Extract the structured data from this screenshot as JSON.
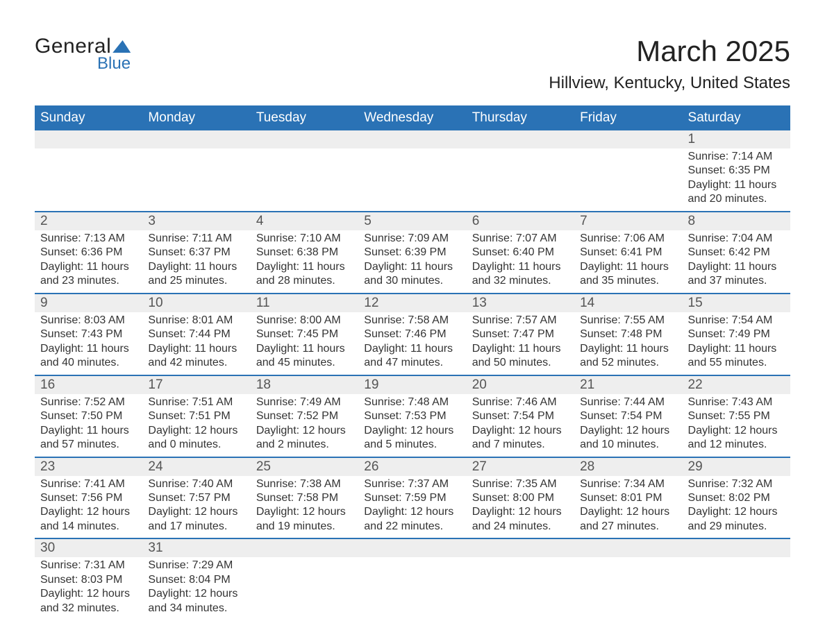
{
  "logo": {
    "text1": "General",
    "text2": "Blue"
  },
  "title": "March 2025",
  "location": "Hillview, Kentucky, United States",
  "colors": {
    "header_bg": "#2a72b5",
    "header_text": "#ffffff",
    "daynum_bg": "#eeeeee",
    "row_border": "#2a72b5",
    "body_text": "#333333",
    "page_bg": "#ffffff"
  },
  "fonts": {
    "title_pt": 42,
    "location_pt": 24,
    "header_pt": 19,
    "daynum_pt": 19,
    "cell_pt": 16
  },
  "dayHeaders": [
    "Sunday",
    "Monday",
    "Tuesday",
    "Wednesday",
    "Thursday",
    "Friday",
    "Saturday"
  ],
  "weeks": [
    [
      null,
      null,
      null,
      null,
      null,
      null,
      {
        "n": "1",
        "sr": "Sunrise: 7:14 AM",
        "ss": "Sunset: 6:35 PM",
        "d1": "Daylight: 11 hours",
        "d2": "and 20 minutes."
      }
    ],
    [
      {
        "n": "2",
        "sr": "Sunrise: 7:13 AM",
        "ss": "Sunset: 6:36 PM",
        "d1": "Daylight: 11 hours",
        "d2": "and 23 minutes."
      },
      {
        "n": "3",
        "sr": "Sunrise: 7:11 AM",
        "ss": "Sunset: 6:37 PM",
        "d1": "Daylight: 11 hours",
        "d2": "and 25 minutes."
      },
      {
        "n": "4",
        "sr": "Sunrise: 7:10 AM",
        "ss": "Sunset: 6:38 PM",
        "d1": "Daylight: 11 hours",
        "d2": "and 28 minutes."
      },
      {
        "n": "5",
        "sr": "Sunrise: 7:09 AM",
        "ss": "Sunset: 6:39 PM",
        "d1": "Daylight: 11 hours",
        "d2": "and 30 minutes."
      },
      {
        "n": "6",
        "sr": "Sunrise: 7:07 AM",
        "ss": "Sunset: 6:40 PM",
        "d1": "Daylight: 11 hours",
        "d2": "and 32 minutes."
      },
      {
        "n": "7",
        "sr": "Sunrise: 7:06 AM",
        "ss": "Sunset: 6:41 PM",
        "d1": "Daylight: 11 hours",
        "d2": "and 35 minutes."
      },
      {
        "n": "8",
        "sr": "Sunrise: 7:04 AM",
        "ss": "Sunset: 6:42 PM",
        "d1": "Daylight: 11 hours",
        "d2": "and 37 minutes."
      }
    ],
    [
      {
        "n": "9",
        "sr": "Sunrise: 8:03 AM",
        "ss": "Sunset: 7:43 PM",
        "d1": "Daylight: 11 hours",
        "d2": "and 40 minutes."
      },
      {
        "n": "10",
        "sr": "Sunrise: 8:01 AM",
        "ss": "Sunset: 7:44 PM",
        "d1": "Daylight: 11 hours",
        "d2": "and 42 minutes."
      },
      {
        "n": "11",
        "sr": "Sunrise: 8:00 AM",
        "ss": "Sunset: 7:45 PM",
        "d1": "Daylight: 11 hours",
        "d2": "and 45 minutes."
      },
      {
        "n": "12",
        "sr": "Sunrise: 7:58 AM",
        "ss": "Sunset: 7:46 PM",
        "d1": "Daylight: 11 hours",
        "d2": "and 47 minutes."
      },
      {
        "n": "13",
        "sr": "Sunrise: 7:57 AM",
        "ss": "Sunset: 7:47 PM",
        "d1": "Daylight: 11 hours",
        "d2": "and 50 minutes."
      },
      {
        "n": "14",
        "sr": "Sunrise: 7:55 AM",
        "ss": "Sunset: 7:48 PM",
        "d1": "Daylight: 11 hours",
        "d2": "and 52 minutes."
      },
      {
        "n": "15",
        "sr": "Sunrise: 7:54 AM",
        "ss": "Sunset: 7:49 PM",
        "d1": "Daylight: 11 hours",
        "d2": "and 55 minutes."
      }
    ],
    [
      {
        "n": "16",
        "sr": "Sunrise: 7:52 AM",
        "ss": "Sunset: 7:50 PM",
        "d1": "Daylight: 11 hours",
        "d2": "and 57 minutes."
      },
      {
        "n": "17",
        "sr": "Sunrise: 7:51 AM",
        "ss": "Sunset: 7:51 PM",
        "d1": "Daylight: 12 hours",
        "d2": "and 0 minutes."
      },
      {
        "n": "18",
        "sr": "Sunrise: 7:49 AM",
        "ss": "Sunset: 7:52 PM",
        "d1": "Daylight: 12 hours",
        "d2": "and 2 minutes."
      },
      {
        "n": "19",
        "sr": "Sunrise: 7:48 AM",
        "ss": "Sunset: 7:53 PM",
        "d1": "Daylight: 12 hours",
        "d2": "and 5 minutes."
      },
      {
        "n": "20",
        "sr": "Sunrise: 7:46 AM",
        "ss": "Sunset: 7:54 PM",
        "d1": "Daylight: 12 hours",
        "d2": "and 7 minutes."
      },
      {
        "n": "21",
        "sr": "Sunrise: 7:44 AM",
        "ss": "Sunset: 7:54 PM",
        "d1": "Daylight: 12 hours",
        "d2": "and 10 minutes."
      },
      {
        "n": "22",
        "sr": "Sunrise: 7:43 AM",
        "ss": "Sunset: 7:55 PM",
        "d1": "Daylight: 12 hours",
        "d2": "and 12 minutes."
      }
    ],
    [
      {
        "n": "23",
        "sr": "Sunrise: 7:41 AM",
        "ss": "Sunset: 7:56 PM",
        "d1": "Daylight: 12 hours",
        "d2": "and 14 minutes."
      },
      {
        "n": "24",
        "sr": "Sunrise: 7:40 AM",
        "ss": "Sunset: 7:57 PM",
        "d1": "Daylight: 12 hours",
        "d2": "and 17 minutes."
      },
      {
        "n": "25",
        "sr": "Sunrise: 7:38 AM",
        "ss": "Sunset: 7:58 PM",
        "d1": "Daylight: 12 hours",
        "d2": "and 19 minutes."
      },
      {
        "n": "26",
        "sr": "Sunrise: 7:37 AM",
        "ss": "Sunset: 7:59 PM",
        "d1": "Daylight: 12 hours",
        "d2": "and 22 minutes."
      },
      {
        "n": "27",
        "sr": "Sunrise: 7:35 AM",
        "ss": "Sunset: 8:00 PM",
        "d1": "Daylight: 12 hours",
        "d2": "and 24 minutes."
      },
      {
        "n": "28",
        "sr": "Sunrise: 7:34 AM",
        "ss": "Sunset: 8:01 PM",
        "d1": "Daylight: 12 hours",
        "d2": "and 27 minutes."
      },
      {
        "n": "29",
        "sr": "Sunrise: 7:32 AM",
        "ss": "Sunset: 8:02 PM",
        "d1": "Daylight: 12 hours",
        "d2": "and 29 minutes."
      }
    ],
    [
      {
        "n": "30",
        "sr": "Sunrise: 7:31 AM",
        "ss": "Sunset: 8:03 PM",
        "d1": "Daylight: 12 hours",
        "d2": "and 32 minutes."
      },
      {
        "n": "31",
        "sr": "Sunrise: 7:29 AM",
        "ss": "Sunset: 8:04 PM",
        "d1": "Daylight: 12 hours",
        "d2": "and 34 minutes."
      },
      null,
      null,
      null,
      null,
      null
    ]
  ]
}
